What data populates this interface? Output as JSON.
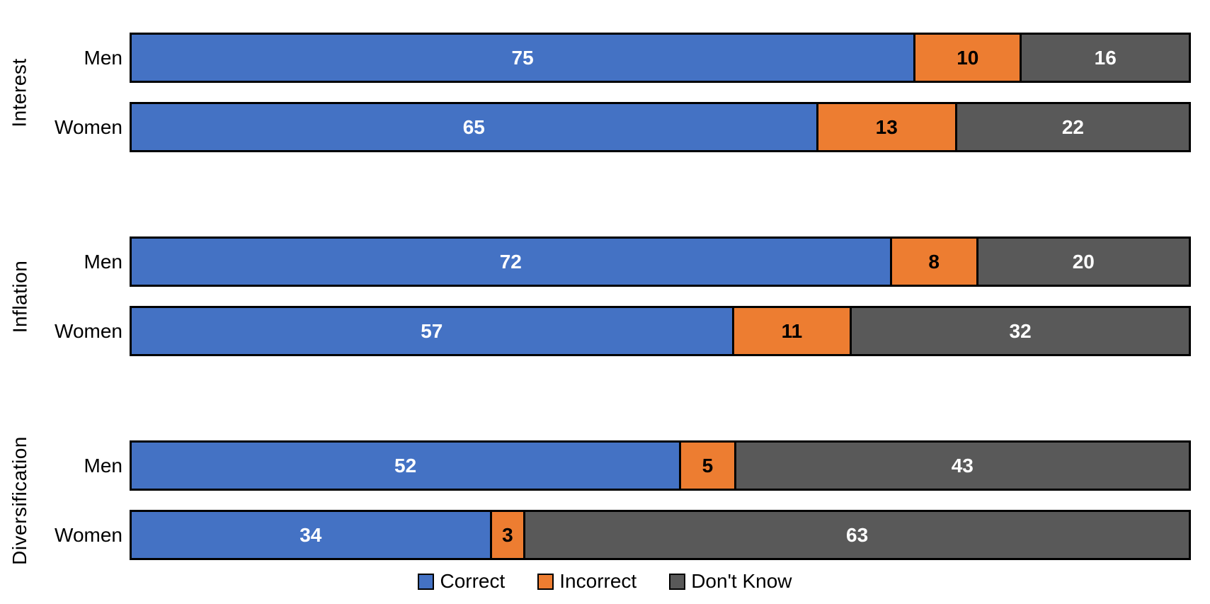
{
  "chart_data": {
    "type": "bar",
    "subtype": "horizontal-stacked-100pct",
    "title": "",
    "xlabel": "",
    "ylabel": "",
    "grid": false,
    "series": [
      {
        "name": "Correct",
        "color": "#4472C4",
        "label_color": "#FFFFFF"
      },
      {
        "name": "Incorrect",
        "color": "#ED7D31",
        "label_color": "#000000"
      },
      {
        "name": "Don't Know",
        "color": "#595959",
        "label_color": "#FFFFFF"
      }
    ],
    "groups": [
      {
        "label": "Interest",
        "rows": [
          {
            "label": "Men",
            "values": [
              75,
              10,
              16
            ]
          },
          {
            "label": "Women",
            "values": [
              65,
              13,
              22
            ]
          }
        ]
      },
      {
        "label": "Inflation",
        "rows": [
          {
            "label": "Men",
            "values": [
              72,
              8,
              20
            ]
          },
          {
            "label": "Women",
            "values": [
              57,
              11,
              32
            ]
          }
        ]
      },
      {
        "label": "Diversification",
        "rows": [
          {
            "label": "Men",
            "values": [
              52,
              5,
              43
            ]
          },
          {
            "label": "Women",
            "values": [
              34,
              3,
              63
            ]
          }
        ]
      }
    ],
    "legend": {
      "position": "bottom",
      "entries": [
        "Correct",
        "Incorrect",
        "Don't Know"
      ]
    },
    "layout": {
      "background": "#FFFFFF",
      "bar_border_color": "#000000",
      "text_color": "#000000"
    }
  }
}
